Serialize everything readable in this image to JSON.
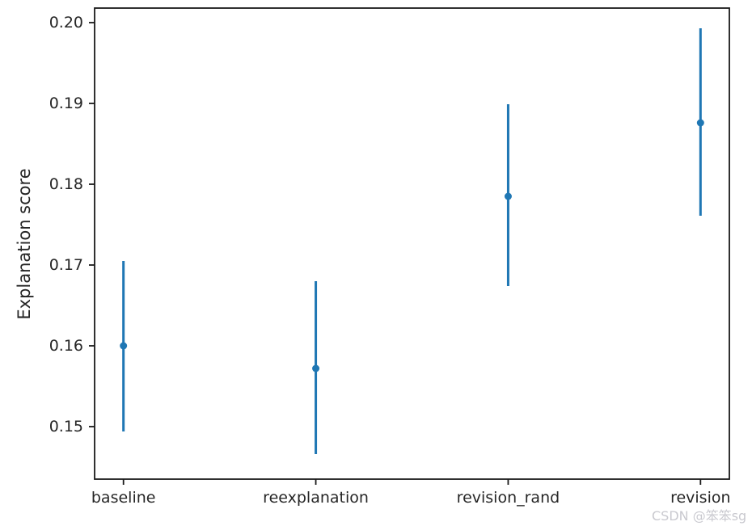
{
  "chart_data": {
    "type": "scatter",
    "subtype": "errorbar",
    "title": "",
    "xlabel": "",
    "ylabel": "Explanation score",
    "categories": [
      "baseline",
      "reexplanation",
      "revision_rand",
      "revision"
    ],
    "series": [
      {
        "name": "explanation-score",
        "values": [
          0.16,
          0.1572,
          0.1785,
          0.1876
        ],
        "error_low": [
          0.1494,
          0.1466,
          0.1674,
          0.1761
        ],
        "error_high": [
          0.1705,
          0.168,
          0.1899,
          0.1993
        ]
      }
    ],
    "yticks": [
      0.15,
      0.16,
      0.17,
      0.18,
      0.19,
      0.2
    ],
    "ytick_labels": [
      "0.15",
      "0.16",
      "0.17",
      "0.18",
      "0.19",
      "0.20"
    ],
    "ylim": [
      0.1435,
      0.2018
    ],
    "xlim": [
      -0.15,
      3.15
    ],
    "grid": false,
    "legend": null,
    "marker_color": "#1f77b4",
    "axis_color": "#1a1a1a",
    "text_color": "#262626"
  },
  "watermark": {
    "text": "CSDN @笨笨sg",
    "color": "#c9c9cf"
  }
}
